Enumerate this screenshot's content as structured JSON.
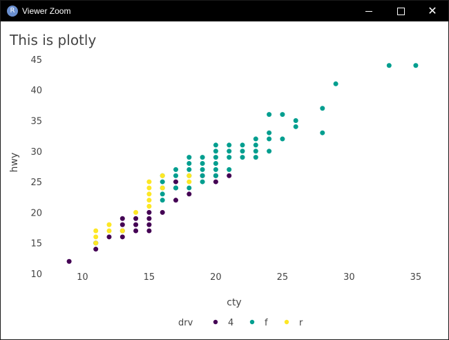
{
  "window": {
    "title": "Viewer Zoom",
    "icon": "r-logo-icon",
    "icon_letter": "R",
    "minimize_icon": "minimize-icon",
    "maximize_icon": "maximize-icon",
    "close_icon": "close-icon",
    "close_glyph": "✕"
  },
  "chart_data": {
    "type": "scatter",
    "title": "This is plotly",
    "xlabel": "cty",
    "ylabel": "hwy",
    "xlim": [
      7.7,
      36.3
    ],
    "ylim": [
      10.0,
      46.0
    ],
    "xticks": [
      10,
      15,
      20,
      25,
      30,
      35
    ],
    "yticks": [
      10,
      15,
      20,
      25,
      30,
      35,
      40,
      45
    ],
    "grid": false,
    "legend": {
      "title": "drv",
      "placement": "bottom"
    },
    "series": [
      {
        "name": "4",
        "color": "#440154",
        "points": [
          [
            9,
            12
          ],
          [
            11,
            14
          ],
          [
            11,
            15
          ],
          [
            12,
            16
          ],
          [
            13,
            16
          ],
          [
            13,
            17
          ],
          [
            13,
            18
          ],
          [
            13,
            19
          ],
          [
            14,
            17
          ],
          [
            14,
            18
          ],
          [
            14,
            19
          ],
          [
            15,
            17
          ],
          [
            15,
            18
          ],
          [
            15,
            19
          ],
          [
            15,
            20
          ],
          [
            16,
            20
          ],
          [
            17,
            22
          ],
          [
            17,
            24
          ],
          [
            17,
            25
          ],
          [
            18,
            23
          ],
          [
            19,
            26
          ],
          [
            20,
            25
          ],
          [
            20,
            26
          ],
          [
            21,
            26
          ]
        ]
      },
      {
        "name": "f",
        "color": "#009e8f",
        "points": [
          [
            11,
            15
          ],
          [
            16,
            22
          ],
          [
            16,
            23
          ],
          [
            16,
            24
          ],
          [
            16,
            25
          ],
          [
            16,
            26
          ],
          [
            17,
            24
          ],
          [
            17,
            26
          ],
          [
            17,
            27
          ],
          [
            18,
            24
          ],
          [
            18,
            26
          ],
          [
            18,
            27
          ],
          [
            18,
            28
          ],
          [
            18,
            29
          ],
          [
            19,
            25
          ],
          [
            19,
            26
          ],
          [
            19,
            27
          ],
          [
            19,
            28
          ],
          [
            19,
            29
          ],
          [
            20,
            26
          ],
          [
            20,
            27
          ],
          [
            20,
            28
          ],
          [
            20,
            29
          ],
          [
            20,
            30
          ],
          [
            20,
            31
          ],
          [
            21,
            27
          ],
          [
            21,
            29
          ],
          [
            21,
            30
          ],
          [
            21,
            31
          ],
          [
            22,
            29
          ],
          [
            22,
            30
          ],
          [
            22,
            31
          ],
          [
            23,
            29
          ],
          [
            23,
            30
          ],
          [
            23,
            31
          ],
          [
            23,
            32
          ],
          [
            24,
            30
          ],
          [
            24,
            32
          ],
          [
            24,
            33
          ],
          [
            24,
            36
          ],
          [
            25,
            32
          ],
          [
            25,
            36
          ],
          [
            26,
            34
          ],
          [
            26,
            35
          ],
          [
            28,
            33
          ],
          [
            28,
            37
          ],
          [
            29,
            41
          ],
          [
            33,
            44
          ],
          [
            35,
            44
          ]
        ]
      },
      {
        "name": "r",
        "color": "#fde725",
        "points": [
          [
            11,
            15
          ],
          [
            11,
            16
          ],
          [
            11,
            17
          ],
          [
            12,
            17
          ],
          [
            12,
            18
          ],
          [
            13,
            17
          ],
          [
            14,
            20
          ],
          [
            15,
            21
          ],
          [
            15,
            22
          ],
          [
            15,
            23
          ],
          [
            15,
            24
          ],
          [
            15,
            25
          ],
          [
            16,
            24
          ],
          [
            16,
            26
          ],
          [
            18,
            25
          ],
          [
            18,
            26
          ]
        ]
      }
    ]
  }
}
